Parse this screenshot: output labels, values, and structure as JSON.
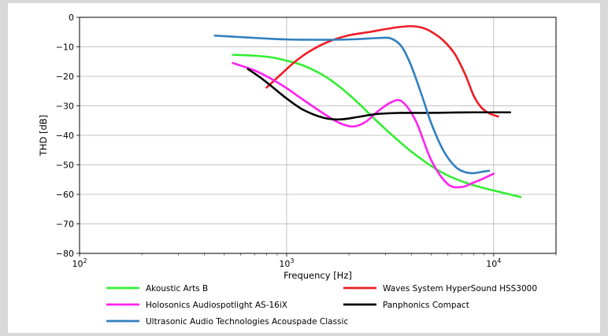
{
  "chart_data": {
    "type": "line",
    "title": "",
    "xlabel": "Frequency [Hz]",
    "ylabel": "THD [dB]",
    "xscale": "log",
    "xlim": [
      100,
      20000
    ],
    "ylim": [
      -80,
      0
    ],
    "grid": true,
    "legend_position": "bottom",
    "x_ticks": [
      {
        "value": 100,
        "base": "10",
        "exp": "2"
      },
      {
        "value": 1000,
        "base": "10",
        "exp": "3"
      },
      {
        "value": 10000,
        "base": "10",
        "exp": "4"
      }
    ],
    "y_ticks": [
      {
        "value": 0,
        "label": "0"
      },
      {
        "value": -10,
        "label": "−10"
      },
      {
        "value": -20,
        "label": "−20"
      },
      {
        "value": -30,
        "label": "−30"
      },
      {
        "value": -40,
        "label": "−40"
      },
      {
        "value": -50,
        "label": "−50"
      },
      {
        "value": -60,
        "label": "−60"
      },
      {
        "value": -70,
        "label": "−70"
      },
      {
        "value": -80,
        "label": "−80"
      }
    ],
    "series": [
      {
        "name": "Akoustic Arts B",
        "color": "#33ee33",
        "x": [
          550,
          700,
          850,
          1000,
          1200,
          1500,
          1800,
          2200,
          2700,
          3300,
          4000,
          5000,
          6000,
          7500,
          9000,
          11000,
          13500
        ],
        "y": [
          -12.7,
          -13.0,
          -13.6,
          -14.7,
          -16.3,
          -19.6,
          -23.5,
          -28.8,
          -34.9,
          -40.5,
          -45.5,
          -50.4,
          -53.6,
          -56.3,
          -57.9,
          -59.4,
          -60.9
        ]
      },
      {
        "name": "Waves System HyperSound HSS3000",
        "color": "#ee1c25",
        "x": [
          800,
          950,
          1100,
          1300,
          1600,
          2000,
          2500,
          3000,
          3500,
          4000,
          4500,
          5000,
          5700,
          6500,
          7300,
          8000,
          8700,
          9500,
          10500
        ],
        "y": [
          -23.8,
          -19.0,
          -15.0,
          -11.4,
          -8.2,
          -6.1,
          -5.0,
          -4.0,
          -3.3,
          -3.0,
          -3.5,
          -4.9,
          -7.8,
          -12.5,
          -19.5,
          -26.5,
          -30.5,
          -32.5,
          -33.6
        ]
      },
      {
        "name": "Holosonics Audiospotlight AS-16iX",
        "color": "#ff22ee",
        "x": [
          550,
          700,
          850,
          1000,
          1200,
          1500,
          1800,
          2100,
          2400,
          2800,
          3200,
          3600,
          4200,
          5000,
          6000,
          7000,
          8000,
          9000,
          10000
        ],
        "y": [
          -15.5,
          -18.0,
          -21.0,
          -24.0,
          -27.9,
          -32.5,
          -35.8,
          -37.0,
          -35.5,
          -31.5,
          -28.8,
          -28.5,
          -35.0,
          -48.5,
          -56.5,
          -57.5,
          -56.0,
          -54.5,
          -53.0
        ]
      },
      {
        "name": "Panphonics Compact",
        "color": "#000000",
        "x": [
          650,
          750,
          850,
          1000,
          1200,
          1500,
          1800,
          2200,
          2700,
          3500,
          4500,
          6000,
          8000,
          10000,
          12000
        ],
        "y": [
          -17.5,
          -20.5,
          -23.5,
          -27.5,
          -31.3,
          -34.0,
          -34.6,
          -33.8,
          -32.8,
          -32.4,
          -32.4,
          -32.3,
          -32.2,
          -32.2,
          -32.2
        ]
      },
      {
        "name": "Ultrasonic Audio Technologies Acouspade Classic",
        "color": "#2f7fbf",
        "x": [
          450,
          600,
          800,
          1000,
          1300,
          1700,
          2200,
          2800,
          3200,
          3600,
          4000,
          4500,
          5000,
          5700,
          6500,
          7300,
          8000,
          8700,
          9500
        ],
        "y": [
          -6.2,
          -6.7,
          -7.2,
          -7.5,
          -7.6,
          -7.6,
          -7.4,
          -7.0,
          -7.2,
          -10.0,
          -16.5,
          -26.5,
          -36.0,
          -45.0,
          -50.5,
          -52.5,
          -52.8,
          -52.4,
          -52.0
        ]
      }
    ]
  }
}
